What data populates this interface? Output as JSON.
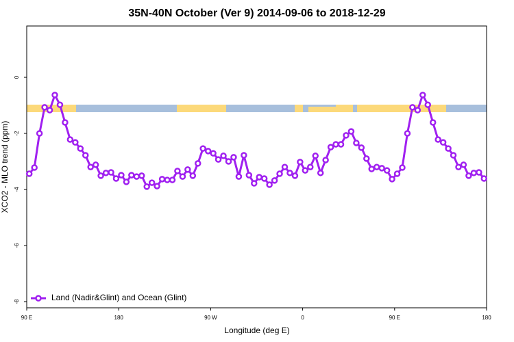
{
  "chart_data": {
    "type": "line",
    "title": "35N-40N October (Ver 9)   2014-09-06 to 2018-12-29",
    "x_label": "Longitude (deg E)",
    "y_label": "XCO2 - MLO trend (ppm)",
    "xlim": [
      90,
      540
    ],
    "xticks": [
      {
        "value": 90,
        "label": "90 E"
      },
      180,
      {
        "value": 270,
        "label": "90 W"
      },
      {
        "value": 360,
        "label": "0"
      },
      {
        "value": 450,
        "label": "90 E"
      },
      180.0001
    ],
    "ylim": [
      -8.22,
      1.83
    ],
    "yticks": [
      0,
      -2,
      -4,
      -6,
      -8
    ],
    "legend_position": "bottom-left",
    "series": [
      {
        "name": "Land (Nadir&Glint) and Ocean (Glint)",
        "color": "#a020f0",
        "x": [
          92.5,
          97.5,
          102.5,
          107.5,
          112.5,
          117.5,
          122.5,
          127.5,
          132.5,
          137.5,
          142.5,
          147.5,
          152.5,
          157.5,
          162.5,
          167.5,
          172.5,
          177.5,
          182.5,
          187.5,
          192.5,
          197.5,
          202.5,
          207.5,
          212.5,
          217.5,
          222.5,
          227.5,
          232.5,
          237.5,
          242.5,
          247.5,
          252.5,
          257.5,
          262.5,
          267.5,
          272.5,
          277.5,
          282.5,
          287.5,
          292.5,
          297.5,
          302.5,
          307.5,
          312.5,
          317.5,
          322.5,
          327.5,
          332.5,
          337.5,
          342.5,
          347.5,
          352.5,
          357.5,
          362.5,
          367.5,
          372.5,
          377.5,
          382.5,
          387.5,
          392.5,
          397.5,
          402.5,
          407.5,
          412.5,
          417.5,
          422.5,
          427.5,
          432.5,
          437.5,
          442.5,
          447.5,
          452.5,
          457.5,
          462.5,
          467.5,
          472.5,
          477.5,
          482.5,
          487.5,
          492.5,
          497.5,
          502.5,
          507.5,
          512.5,
          517.5,
          522.5,
          527.5,
          532.5,
          537.5
        ],
        "values": [
          -3.44,
          -3.22,
          -2.0,
          -1.07,
          -1.17,
          -0.63,
          -0.98,
          -1.61,
          -2.22,
          -2.32,
          -2.54,
          -2.78,
          -3.2,
          -3.12,
          -3.51,
          -3.41,
          -3.39,
          -3.61,
          -3.49,
          -3.73,
          -3.49,
          -3.54,
          -3.51,
          -3.9,
          -3.76,
          -3.88,
          -3.63,
          -3.66,
          -3.66,
          -3.34,
          -3.54,
          -3.29,
          -3.51,
          -3.07,
          -2.54,
          -2.63,
          -2.71,
          -2.93,
          -2.8,
          -3.0,
          -2.85,
          -3.54,
          -2.78,
          -3.49,
          -3.78,
          -3.56,
          -3.61,
          -3.83,
          -3.68,
          -3.44,
          -3.2,
          -3.41,
          -3.51,
          -3.02,
          -3.32,
          -3.2,
          -2.8,
          -3.41,
          -2.95,
          -2.49,
          -2.39,
          -2.39,
          -2.07,
          -1.93,
          -2.34,
          -2.51,
          -2.9,
          -3.27,
          -3.2,
          -3.24,
          -3.32,
          -3.63,
          -3.44,
          -3.22,
          -2.0,
          -1.07,
          -1.17,
          -0.63,
          -0.98,
          -1.61,
          -2.22,
          -2.32,
          -2.54,
          -2.78,
          -3.2,
          -3.12,
          -3.51,
          -3.41,
          -3.39,
          -3.61
        ]
      }
    ]
  }
}
